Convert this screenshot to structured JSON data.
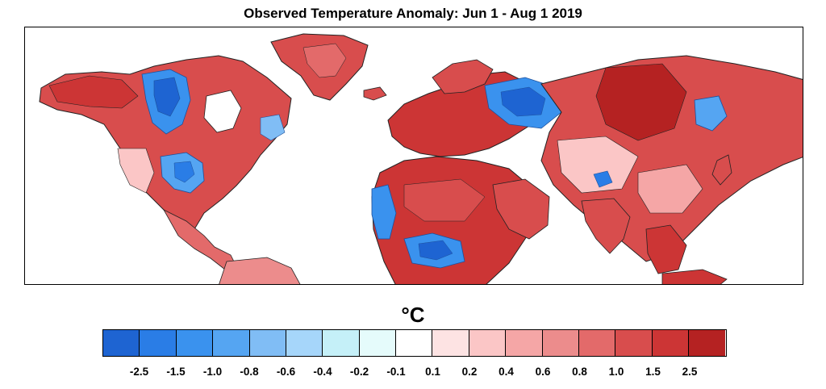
{
  "map": {
    "title": "Observed Temperature Anomaly: Jun 1 - Aug 1 2019",
    "units": "°C",
    "projection": "cylindrical",
    "legend": {
      "placement": "bottom",
      "colors": [
        "#1e64d2",
        "#2a7de6",
        "#3a92ee",
        "#55a5f2",
        "#80bdf5",
        "#a6d6fa",
        "#c5f0f8",
        "#e5fbfb",
        "#ffffff",
        "#fde3e3",
        "#fbc6c6",
        "#f5a6a6",
        "#ec8c8c",
        "#e36a6a",
        "#d84d4d",
        "#cc3535",
        "#b52222"
      ],
      "tick_labels": [
        "-2.5",
        "-1.5",
        "-1.0",
        "-0.8",
        "-0.6",
        "-0.4",
        "-0.2",
        "-0.1",
        "0.1",
        "0.2",
        "0.4",
        "0.6",
        "0.8",
        "1.0",
        "1.5",
        "2.5"
      ]
    }
  }
}
